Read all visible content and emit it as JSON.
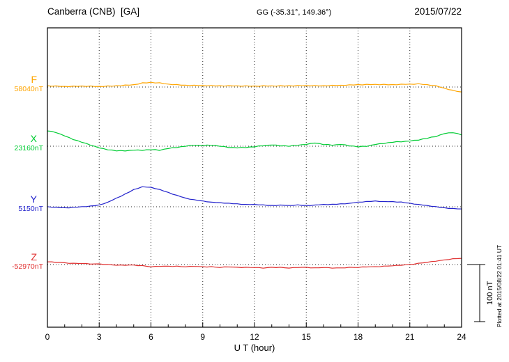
{
  "header": {
    "title": "Canberra (CNB)  [GA]",
    "coords": "GG (-35.31°, 149.36°)",
    "date": "2015/07/22"
  },
  "axis": {
    "xlabel": "U T (hour)"
  },
  "annotations": {
    "scale_bar_label": "100 nT",
    "plotted_at": "Plotted at 2015/08/22 01:41 UT"
  },
  "chart_data": {
    "type": "line",
    "title": "Canberra (CNB) [GA] magnetogram 2015/07/22",
    "xlabel": "U T (hour)",
    "x_range": [
      0,
      24
    ],
    "x_step": 0.25,
    "x_ticks": [
      0,
      3,
      6,
      9,
      12,
      15,
      18,
      21,
      24
    ],
    "grid": "vertical dotted gridlines every 3 hours; dotted horizontal baseline per trace",
    "legend_position": "left",
    "scale_bar_nT": 100,
    "values_unit": "nT offset from each trace baseline",
    "series": [
      {
        "name": "F",
        "base_label": "58040nT",
        "baseline_nT": 58040,
        "color": "#FFA500",
        "values": [
          2.3,
          1.4,
          2.0,
          1.1,
          1.1,
          0.6,
          1.7,
          1.1,
          1.8,
          1.0,
          1.8,
          0.9,
          1.1,
          0.8,
          1.9,
          1.5,
          2.3,
          2.1,
          3.5,
          3.3,
          4.1,
          5.0,
          7.4,
          7.2,
          8.3,
          7.1,
          7.5,
          5.8,
          5.1,
          4.0,
          4.4,
          3.2,
          3.3,
          2.5,
          3.3,
          2.4,
          2.6,
          1.9,
          2.7,
          1.8,
          2.3,
          1.6,
          2.5,
          1.8,
          2.1,
          1.4,
          2.2,
          1.3,
          1.8,
          1.2,
          2.3,
          1.7,
          2.1,
          1.5,
          2.4,
          1.7,
          2.3,
          1.7,
          2.8,
          2.2,
          2.6,
          1.9,
          2.7,
          1.8,
          2.3,
          1.9,
          3.0,
          2.6,
          3.1,
          2.8,
          3.9,
          3.5,
          4.3,
          3.7,
          4.8,
          4.2,
          4.6,
          3.9,
          4.7,
          3.8,
          4.3,
          3.9,
          5.0,
          4.6,
          5.1,
          4.8,
          5.9,
          4.5,
          4.3,
          2.6,
          2.5,
          -0.2,
          -1.9,
          -4.5,
          -5.6,
          -7.8,
          -8.7
        ]
      },
      {
        "name": "X",
        "base_label": "23160nT",
        "baseline_nT": 23160,
        "color": "#00CC33",
        "values": [
          26.7,
          26.0,
          23.6,
          21.2,
          17.9,
          15.4,
          11.5,
          9.8,
          6.7,
          5.0,
          1.6,
          -0.3,
          -3.1,
          -4.1,
          -6.5,
          -6.7,
          -8.3,
          -7.5,
          -8.4,
          -7.3,
          -7.1,
          -6.6,
          -7.5,
          -6.2,
          -6.3,
          -6.0,
          -7.4,
          -5.3,
          -4.1,
          -2.6,
          -2.5,
          -0.7,
          -0.3,
          1.5,
          1.6,
          1.7,
          0.9,
          1.9,
          1.5,
          1.3,
          -0.3,
          -0.5,
          -2.4,
          -2.3,
          -3.1,
          -2.1,
          -2.5,
          -1.2,
          -1.3,
          0.5,
          0.6,
          1.7,
          1.9,
          1.9,
          0.5,
          0.8,
          -0.3,
          1.5,
          1.6,
          2.7,
          2.9,
          4.9,
          5.5,
          4.8,
          2.7,
          3.0,
          1.6,
          2.7,
          2.9,
          2.4,
          0.5,
          0.3,
          -1.3,
          0.0,
          -0.4,
          1.7,
          2.9,
          4.4,
          4.5,
          6.3,
          6.7,
          8.0,
          7.6,
          8.7,
          8.9,
          10.4,
          10.5,
          12.8,
          13.7,
          16.0,
          16.6,
          19.7,
          21.9,
          23.4,
          23.5,
          22.3,
          19.7
        ]
      },
      {
        "name": "Y",
        "base_label": "5150nT",
        "baseline_nT": 5150,
        "color": "#2222CC",
        "values": [
          0.2,
          -0.8,
          -0.6,
          -1.7,
          -1.7,
          -1.9,
          -0.9,
          -0.6,
          0.2,
          0.2,
          1.4,
          1.8,
          3.3,
          5.1,
          8.1,
          11.4,
          15.2,
          18.2,
          22.4,
          25.8,
          30.3,
          32.1,
          35.1,
          34.4,
          34.2,
          31.7,
          30.4,
          27.3,
          25.3,
          22.1,
          20.1,
          17.4,
          15.2,
          13.2,
          12.4,
          10.8,
          10.3,
          8.6,
          8.1,
          7.4,
          7.2,
          6.2,
          6.4,
          5.3,
          5.3,
          4.1,
          4.1,
          3.9,
          4.2,
          3.2,
          3.4,
          2.3,
          2.3,
          2.1,
          3.1,
          2.4,
          2.2,
          2.2,
          3.4,
          2.3,
          2.3,
          2.1,
          3.1,
          3.4,
          4.2,
          3.7,
          4.4,
          4.3,
          5.3,
          5.1,
          6.1,
          6.9,
          8.2,
          8.2,
          9.4,
          9.3,
          10.3,
          9.1,
          9.1,
          8.9,
          9.2,
          8.2,
          8.4,
          6.8,
          6.3,
          4.6,
          4.1,
          2.9,
          2.2,
          0.7,
          0.4,
          -1.2,
          -1.7,
          -2.9,
          -2.9,
          -3.6,
          -3.8
        ]
      },
      {
        "name": "Z",
        "base_label": "-52970nT",
        "baseline_nT": -52970,
        "color": "#E03030",
        "values": [
          4.8,
          4.8,
          3.7,
          3.6,
          3.2,
          2.1,
          2.3,
          1.9,
          1.8,
          1.8,
          0.7,
          1.1,
          1.2,
          0.1,
          0.3,
          -0.6,
          -1.2,
          -0.7,
          -1.3,
          -0.9,
          -0.8,
          -1.9,
          -1.7,
          -3.1,
          -4.2,
          -3.2,
          -3.3,
          -2.9,
          -2.8,
          -3.4,
          -2.7,
          -3.6,
          -4.2,
          -3.2,
          -3.3,
          -3.4,
          -3.8,
          -4.4,
          -3.7,
          -4.6,
          -5.2,
          -4.2,
          -4.3,
          -4.4,
          -4.8,
          -5.4,
          -4.7,
          -5.1,
          -5.2,
          -5.2,
          -6.3,
          -5.4,
          -4.8,
          -5.4,
          -4.7,
          -5.6,
          -6.2,
          -5.2,
          -5.3,
          -4.9,
          -4.8,
          -5.9,
          -5.7,
          -5.6,
          -5.2,
          -5.2,
          -6.3,
          -5.9,
          -5.8,
          -5.9,
          -4.7,
          -5.1,
          -5.2,
          -4.2,
          -4.3,
          -3.9,
          -3.8,
          -3.9,
          -2.7,
          -2.6,
          -2.2,
          -1.2,
          -1.3,
          -0.4,
          0.2,
          0.6,
          2.3,
          2.9,
          3.8,
          5.3,
          5.7,
          7.1,
          8.2,
          8.6,
          10.3,
          10.4,
          10.8
        ]
      }
    ]
  }
}
